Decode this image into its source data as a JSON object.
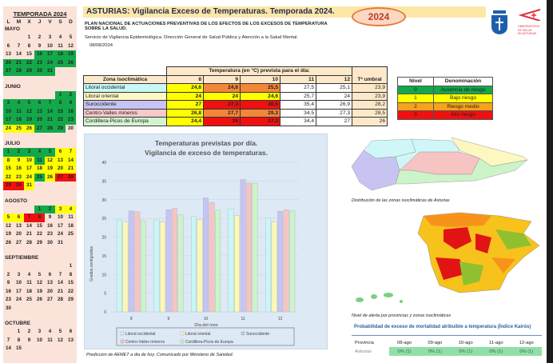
{
  "calendar": {
    "title": "TEMPORADA 2024",
    "weekdays": [
      "L",
      "M",
      "X",
      "J",
      "V",
      "S",
      "D"
    ],
    "months": [
      {
        "name": "MAYO",
        "offset": 2,
        "days": 31,
        "levels": "---------------0000000000000000"
      },
      {
        "name": "JUNIO",
        "offset": 5,
        "days": 30,
        "levels": "00000000000000000000000111000"
      },
      {
        "name": "JULIO",
        "offset": 0,
        "days": 31,
        "levels": "0000011111011111111111110133331"
      },
      {
        "name": "AGOSTO",
        "offset": 3,
        "days": 31,
        "levels": "00111133---------------------"
      },
      {
        "name": "SEPTIEMBRE",
        "offset": 6,
        "days": 30,
        "levels": ""
      },
      {
        "name": "OCTUBRE",
        "offset": 1,
        "days": 15,
        "levels": ""
      }
    ],
    "level_colors": {
      "0": "#13a84a",
      "1": "#ffff00",
      "3": "#f01010"
    }
  },
  "header": {
    "title": "ASTURIAS: Vigilancia Exceso de Temperaturas. Temporada 2024.",
    "year_badge": "2024",
    "plan": "PLAN NACIONAL DE ACTUACIONES PREVENTIVAS DE LOS EFECTOS DE LOS EXCESOS DE TEMPERATURA SOBRE LA SALUD.",
    "service": "Servicio de Vigilancia Epidemiológica. Dirección General de Salud Pública y Atención a la Salud Mental.",
    "date": "08/08/2024",
    "logo_text": "OBSERVATORIO DE SALUD EN ASTURIAS"
  },
  "temps": {
    "group_header": "Temperatura (en °C) prevista para el día:",
    "zone_header": "Zona isoclimática",
    "days": [
      "8",
      "9",
      "10",
      "11",
      "12"
    ],
    "umbral_header": "Tª umbral",
    "rows": [
      {
        "zone": "Litoral occidental",
        "color": "#c9f6f6",
        "values": [
          "24,6",
          "24,6",
          "25,5",
          "27,5",
          "25,1"
        ],
        "levels": [
          1,
          2,
          2,
          null,
          null
        ],
        "umbral": "23,9"
      },
      {
        "zone": "Litoral oriental",
        "color": "#fdf7c4",
        "values": [
          "24",
          "24",
          "24,6",
          "25,7",
          "24"
        ],
        "levels": [
          1,
          1,
          1,
          null,
          null
        ],
        "umbral": "23,9"
      },
      {
        "zone": "Suroccidente",
        "color": "#c6c4f2",
        "values": [
          "27",
          "27,3",
          "30,5",
          "35,4",
          "26,9"
        ],
        "levels": [
          1,
          3,
          3,
          null,
          null
        ],
        "umbral": "28,2"
      },
      {
        "zone": "Centro-Valles mineros",
        "color": "#f7c9c9",
        "values": [
          "26,8",
          "27,7",
          "29,3",
          "34,5",
          "27,3"
        ],
        "levels": [
          1,
          2,
          2,
          null,
          null
        ],
        "umbral": "28,5"
      },
      {
        "zone": "Cordillera-Picos de Europa",
        "color": "#d3f3cf",
        "values": [
          "24,4",
          "26",
          "27,2",
          "34,4",
          "27"
        ],
        "levels": [
          1,
          3,
          3,
          null,
          null
        ],
        "umbral": "26"
      }
    ]
  },
  "levels_legend": {
    "headers": [
      "Nivel",
      "Denominación"
    ],
    "rows": [
      {
        "level": "0",
        "name": "Ausencia de riesgo",
        "color": "#13a84a"
      },
      {
        "level": "1",
        "name": "Bajo riesgo",
        "color": "#ffff00"
      },
      {
        "level": "2",
        "name": "Riesgo medio",
        "color": "#f7a21b"
      },
      {
        "level": "3",
        "name": "Alto riesgo",
        "color": "#f01010"
      }
    ]
  },
  "chart_data": {
    "type": "bar",
    "title": "Temperaturas previstas por día.",
    "subtitle": "Vigilancia de exceso de temperaturas.",
    "xlabel": "Día del mes",
    "ylabel": "Grados centígrados",
    "ylim": [
      0,
      40
    ],
    "yticks": [
      "0",
      "5",
      "10",
      "15",
      "20",
      "25",
      "30",
      "35",
      "40"
    ],
    "categories": [
      "8",
      "9",
      "10",
      "11",
      "12"
    ],
    "legend": "bottom",
    "grid": true,
    "series": [
      {
        "name": "Litoral occidental",
        "color": "#c9f6f6",
        "values": [
          24.6,
          24.6,
          25.5,
          27.5,
          25.1
        ]
      },
      {
        "name": "Litoral oriental",
        "color": "#fdf7b8",
        "values": [
          24,
          24,
          24.6,
          25.7,
          24
        ]
      },
      {
        "name": "Suroccidente",
        "color": "#c6c4f2",
        "values": [
          27,
          27.3,
          30.5,
          35.4,
          26.9
        ]
      },
      {
        "name": "Centro-Valles mineros",
        "color": "#f7c4c4",
        "values": [
          26.8,
          27.7,
          29.3,
          34.5,
          27.3
        ]
      },
      {
        "name": "Cordillera-Picos de Europa",
        "color": "#cdf3c8",
        "values": [
          24.4,
          26,
          27.2,
          34.4,
          27
        ]
      }
    ]
  },
  "notes": {
    "chart_source": "Prediccion de AEMET a dia de hoy. Comunicado por Ministerio de Sanidad.",
    "map1_caption": "Distribución de las zonas isoclimáticas de Asturias",
    "map2_caption": "Nivel de alerta por provincias y zonas isoclimáticas"
  },
  "kairos": {
    "title": "Probabilidad de exceso de mortalidad atribuible a temperatura (Índice Kairós)",
    "headers": [
      "Provincia",
      "08-ago",
      "09-ago",
      "10-ago",
      "11-ago",
      "12-ago"
    ],
    "row": {
      "province": "Asturias",
      "values": [
        "0% (1)",
        "0% (1)",
        "0% (1)",
        "0% (1)",
        "0% (1)"
      ]
    }
  }
}
